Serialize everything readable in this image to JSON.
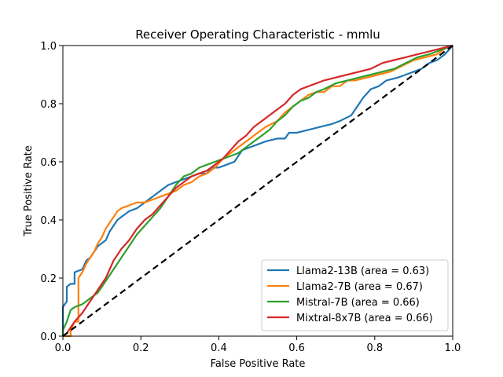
{
  "chart_data": {
    "type": "line",
    "title": "Receiver Operating Characteristic - mmlu",
    "xlabel": "False Positive Rate",
    "ylabel": "True Positive Rate",
    "xlim": [
      0,
      1
    ],
    "ylim": [
      0,
      1
    ],
    "xticks": [
      "0.0",
      "0.2",
      "0.4",
      "0.6",
      "0.8",
      "1.0"
    ],
    "yticks": [
      "0.0",
      "0.2",
      "0.4",
      "0.6",
      "0.8",
      "1.0"
    ],
    "grid": false,
    "legend_position": "lower-right",
    "diagonal": {
      "x": [
        0,
        1
      ],
      "y": [
        0,
        1
      ],
      "color": "#000000",
      "style": "dashed"
    },
    "series": [
      {
        "name": "Llama2-13B (area = 0.63)",
        "color": "#1f77b4",
        "x": [
          0,
          0,
          0.01,
          0.01,
          0.02,
          0.03,
          0.03,
          0.05,
          0.06,
          0.07,
          0.08,
          0.09,
          0.1,
          0.11,
          0.12,
          0.13,
          0.14,
          0.15,
          0.17,
          0.19,
          0.21,
          0.23,
          0.25,
          0.27,
          0.29,
          0.31,
          0.33,
          0.35,
          0.37,
          0.38,
          0.4,
          0.42,
          0.44,
          0.45,
          0.46,
          0.48,
          0.5,
          0.52,
          0.55,
          0.57,
          0.58,
          0.6,
          0.63,
          0.66,
          0.69,
          0.71,
          0.74,
          0.76,
          0.77,
          0.79,
          0.81,
          0.83,
          0.86,
          0.88,
          0.9,
          0.92,
          0.94,
          0.96,
          0.98,
          1.0
        ],
        "y": [
          0,
          0.1,
          0.12,
          0.17,
          0.18,
          0.18,
          0.22,
          0.23,
          0.26,
          0.27,
          0.29,
          0.31,
          0.32,
          0.33,
          0.36,
          0.38,
          0.4,
          0.41,
          0.43,
          0.44,
          0.46,
          0.48,
          0.5,
          0.52,
          0.53,
          0.54,
          0.55,
          0.56,
          0.56,
          0.58,
          0.58,
          0.59,
          0.6,
          0.62,
          0.64,
          0.65,
          0.66,
          0.67,
          0.68,
          0.68,
          0.7,
          0.7,
          0.71,
          0.72,
          0.73,
          0.74,
          0.76,
          0.8,
          0.82,
          0.85,
          0.86,
          0.88,
          0.89,
          0.9,
          0.91,
          0.92,
          0.94,
          0.95,
          0.97,
          1.0
        ]
      },
      {
        "name": "Llama2-7B (area = 0.67)",
        "color": "#ff7f0e",
        "x": [
          0,
          0.02,
          0.02,
          0.03,
          0.04,
          0.04,
          0.05,
          0.06,
          0.07,
          0.08,
          0.09,
          0.1,
          0.11,
          0.12,
          0.13,
          0.14,
          0.15,
          0.17,
          0.19,
          0.21,
          0.23,
          0.25,
          0.27,
          0.29,
          0.31,
          0.33,
          0.35,
          0.37,
          0.39,
          0.41,
          0.43,
          0.45,
          0.47,
          0.5,
          0.52,
          0.55,
          0.57,
          0.59,
          0.61,
          0.63,
          0.65,
          0.67,
          0.69,
          0.71,
          0.73,
          0.75,
          0.78,
          0.81,
          0.84,
          0.87,
          0.9,
          0.93,
          0.96,
          0.98,
          1.0
        ],
        "y": [
          0,
          0.0,
          0.02,
          0.05,
          0.05,
          0.2,
          0.22,
          0.25,
          0.27,
          0.29,
          0.32,
          0.34,
          0.37,
          0.39,
          0.41,
          0.43,
          0.44,
          0.45,
          0.46,
          0.46,
          0.47,
          0.48,
          0.49,
          0.5,
          0.52,
          0.53,
          0.55,
          0.56,
          0.58,
          0.61,
          0.63,
          0.65,
          0.67,
          0.7,
          0.72,
          0.74,
          0.77,
          0.79,
          0.81,
          0.83,
          0.84,
          0.84,
          0.86,
          0.86,
          0.88,
          0.88,
          0.89,
          0.9,
          0.91,
          0.93,
          0.95,
          0.96,
          0.97,
          0.99,
          1.0
        ]
      },
      {
        "name": "Mistral-7B (area = 0.66)",
        "color": "#2ca02c",
        "x": [
          0,
          0.0,
          0.01,
          0.02,
          0.03,
          0.05,
          0.07,
          0.09,
          0.11,
          0.13,
          0.15,
          0.17,
          0.19,
          0.21,
          0.23,
          0.25,
          0.27,
          0.29,
          0.31,
          0.33,
          0.35,
          0.37,
          0.39,
          0.41,
          0.43,
          0.45,
          0.47,
          0.49,
          0.51,
          0.53,
          0.55,
          0.57,
          0.59,
          0.61,
          0.63,
          0.65,
          0.67,
          0.7,
          0.73,
          0.76,
          0.79,
          0.82,
          0.85,
          0.88,
          0.91,
          0.94,
          0.96,
          0.98,
          1.0
        ],
        "y": [
          0,
          0.02,
          0.05,
          0.09,
          0.1,
          0.11,
          0.13,
          0.15,
          0.19,
          0.23,
          0.27,
          0.31,
          0.35,
          0.38,
          0.41,
          0.44,
          0.48,
          0.52,
          0.55,
          0.56,
          0.58,
          0.59,
          0.6,
          0.61,
          0.62,
          0.63,
          0.65,
          0.67,
          0.69,
          0.71,
          0.74,
          0.76,
          0.79,
          0.81,
          0.82,
          0.84,
          0.85,
          0.87,
          0.88,
          0.89,
          0.9,
          0.91,
          0.92,
          0.94,
          0.96,
          0.97,
          0.98,
          0.99,
          1.0
        ]
      },
      {
        "name": "Mixtral-8x7B (area = 0.66)",
        "color": "#d62728",
        "x": [
          0,
          0.01,
          0.02,
          0.03,
          0.05,
          0.07,
          0.09,
          0.11,
          0.13,
          0.15,
          0.17,
          0.19,
          0.21,
          0.23,
          0.25,
          0.27,
          0.29,
          0.31,
          0.33,
          0.35,
          0.37,
          0.39,
          0.41,
          0.43,
          0.45,
          0.47,
          0.49,
          0.51,
          0.53,
          0.55,
          0.57,
          0.59,
          0.61,
          0.63,
          0.65,
          0.67,
          0.7,
          0.73,
          0.76,
          0.79,
          0.82,
          0.85,
          0.88,
          0.91,
          0.94,
          0.97,
          1.0
        ],
        "y": [
          0,
          0.01,
          0.03,
          0.05,
          0.08,
          0.12,
          0.16,
          0.2,
          0.26,
          0.3,
          0.33,
          0.37,
          0.4,
          0.42,
          0.45,
          0.48,
          0.51,
          0.53,
          0.55,
          0.56,
          0.57,
          0.59,
          0.61,
          0.64,
          0.67,
          0.69,
          0.72,
          0.74,
          0.76,
          0.78,
          0.8,
          0.83,
          0.85,
          0.86,
          0.87,
          0.88,
          0.89,
          0.9,
          0.91,
          0.92,
          0.94,
          0.95,
          0.96,
          0.97,
          0.98,
          0.99,
          1.0
        ]
      }
    ]
  }
}
